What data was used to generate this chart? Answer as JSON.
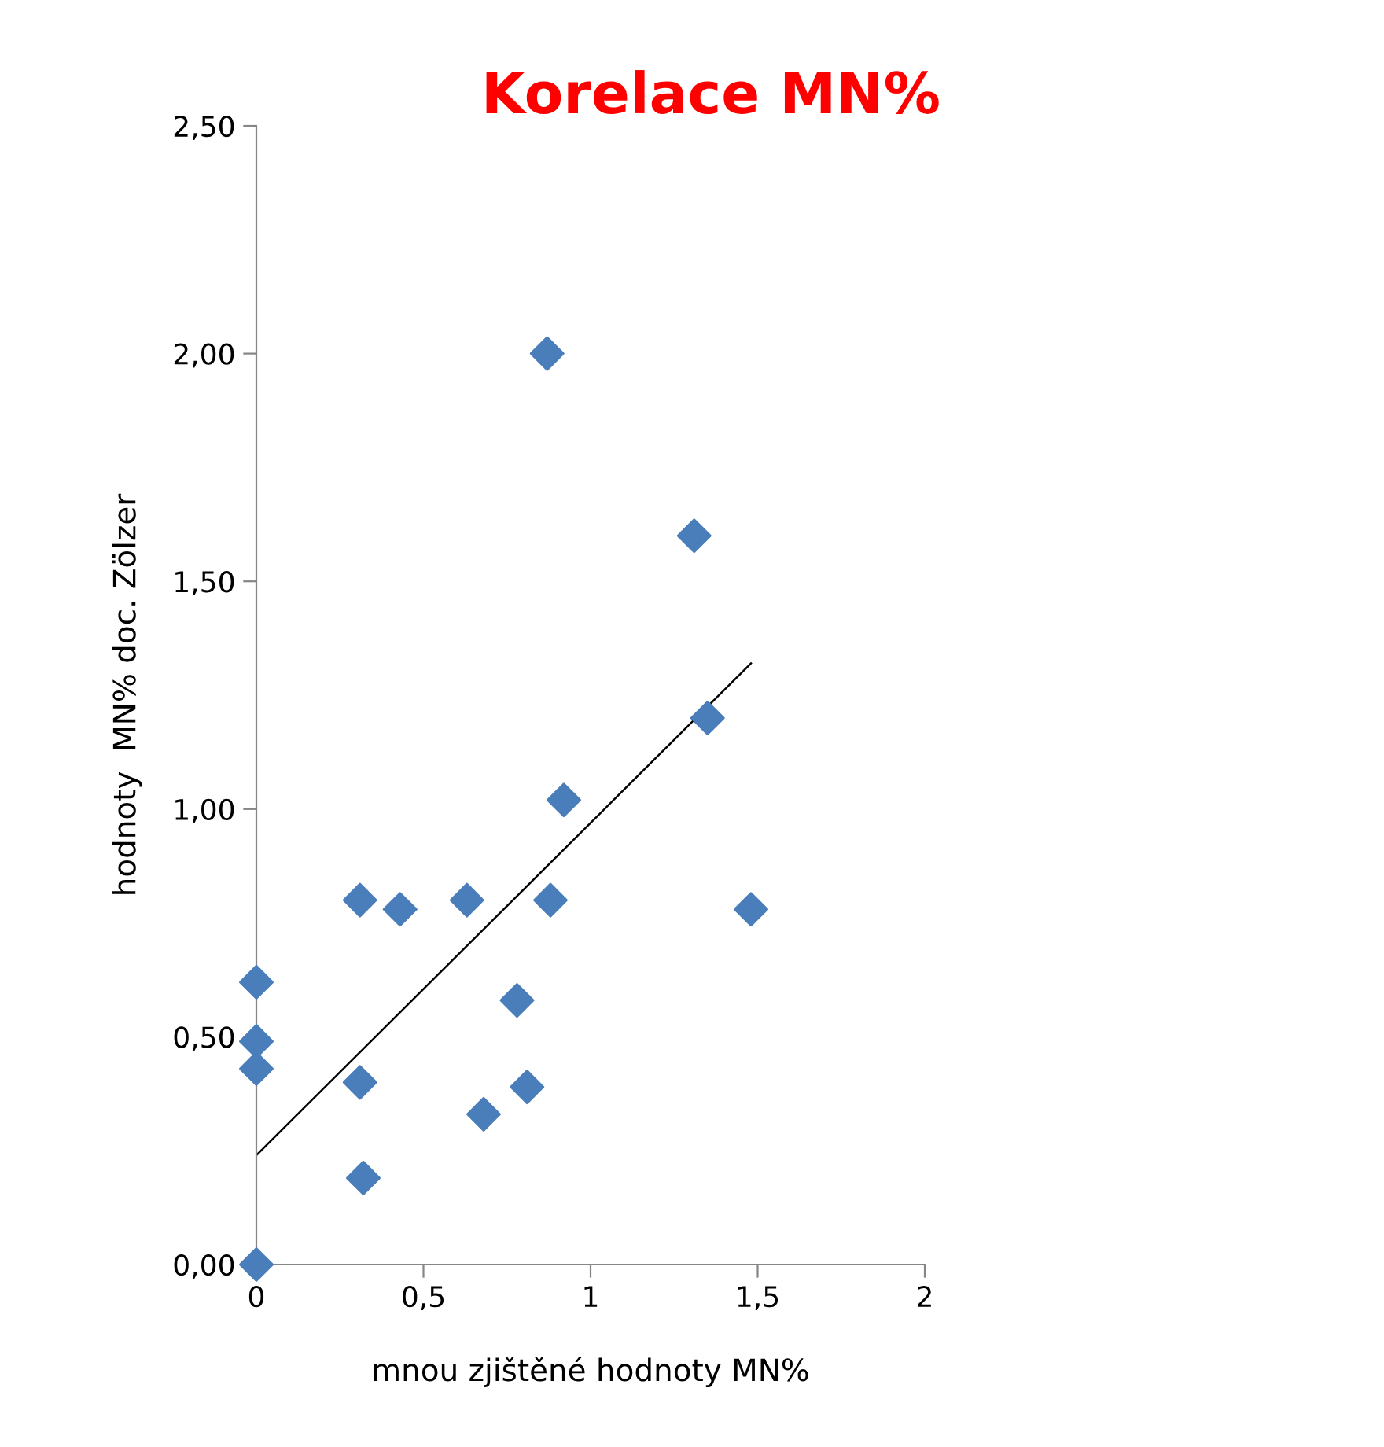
{
  "chart_data": {
    "type": "scatter",
    "title": "Korelace MN%",
    "xlabel": "mnou zjištěné hodnoty MN%",
    "ylabel": "hodnoty  MN% doc. Zölzer",
    "xlim": [
      0,
      2
    ],
    "xticks": [
      0,
      {
        "value": 0.5,
        "label": "0,5"
      },
      1,
      {
        "value": 1.5,
        "label": "1,5"
      },
      2
    ],
    "ylim": [
      0,
      2.5
    ],
    "yticks": [
      {
        "value": 0,
        "label": "0,00"
      },
      {
        "value": 0.5,
        "label": "0,50"
      },
      {
        "value": 1,
        "label": "1,00"
      },
      {
        "value": 1.5,
        "label": "1,50"
      },
      {
        "value": 2,
        "label": "2,00"
      },
      {
        "value": 2.5,
        "label": "2,50"
      }
    ],
    "grid": false,
    "legend": false,
    "marker": "diamond",
    "series": [
      {
        "color": "#4a7ebb",
        "x": [
          0,
          0,
          0,
          0,
          0.31,
          0.31,
          0.32,
          0.43,
          0.63,
          0.68,
          0.78,
          0.81,
          0.87,
          0.88,
          0.92,
          1.31,
          1.35,
          1.48
        ],
        "values": [
          0,
          0.62,
          0.49,
          0.43,
          0.8,
          0.4,
          0.19,
          0.78,
          0.8,
          0.33,
          0.58,
          0.39,
          2.0,
          0.8,
          1.02,
          1.6,
          1.2,
          0.78
        ]
      },
      {
        "type": "line",
        "color": "#000000",
        "x": [
          0,
          1.48
        ],
        "values": [
          0.24,
          1.32
        ],
        "marker": "none",
        "line_style": "solid"
      }
    ]
  }
}
